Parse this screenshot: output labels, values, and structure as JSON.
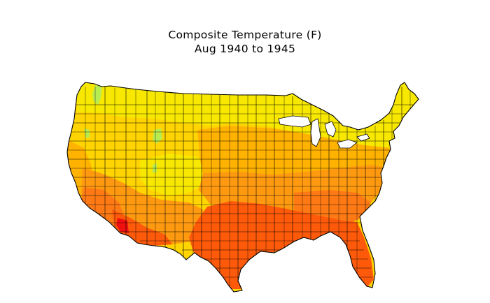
{
  "figure": {
    "title": "Composite Temperature (F)",
    "subtitle": "Aug 1940 to 1945"
  },
  "colors": {
    "background": "#ffffff",
    "boundary": "#000000",
    "light_green": "#b8ec50",
    "yellow": "#f8e800",
    "gold": "#ffd400",
    "light_orange": "#ffb200",
    "orange": "#ff9a10",
    "dark_orange": "#ff7a14",
    "red_orange": "#ff5a0a",
    "red": "#f01010"
  }
}
